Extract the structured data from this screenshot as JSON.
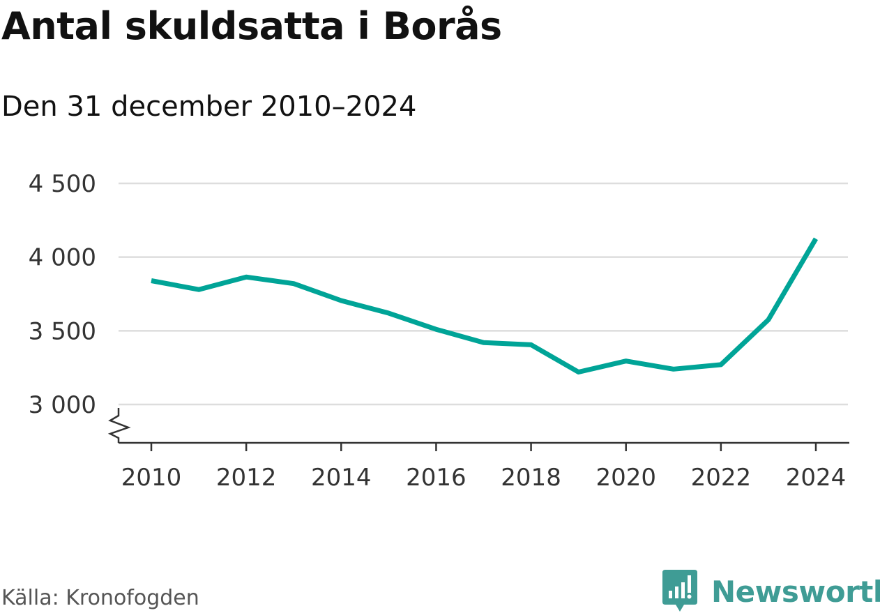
{
  "title": "Antal skuldsatta i Borås",
  "subtitle": "Den 31 december 2010–2024",
  "source": "Källa: Kronofogden",
  "brand": {
    "name": "Newsworthy",
    "logo_icon": "newsworthy-logo-icon",
    "color": "#3f9c95"
  },
  "chart_data": {
    "type": "line",
    "title": "Antal skuldsatta i Borås",
    "subtitle": "Den 31 december 2010–2024",
    "xlabel": "",
    "ylabel": "",
    "x": [
      2010,
      2011,
      2012,
      2013,
      2014,
      2015,
      2016,
      2017,
      2018,
      2019,
      2020,
      2021,
      2022,
      2023,
      2024
    ],
    "series": [
      {
        "values": [
          3840,
          3780,
          3865,
          3820,
          3705,
          3620,
          3510,
          3420,
          3405,
          3220,
          3295,
          3240,
          3270,
          3575,
          4125
        ],
        "color": "#00a497"
      }
    ],
    "x_ticks": [
      "2010",
      "2012",
      "2014",
      "2016",
      "2018",
      "2020",
      "2022",
      "2024"
    ],
    "y_ticks": [
      "3 000",
      "3 500",
      "4 000",
      "4 500"
    ],
    "y_tick_values": [
      3000,
      3500,
      4000,
      4500
    ],
    "x_tick_values": [
      2010,
      2012,
      2014,
      2016,
      2018,
      2020,
      2022,
      2024
    ],
    "xlim": [
      2010,
      2024
    ],
    "ylim": [
      3000,
      4500
    ],
    "axis_break": true,
    "grid": true,
    "legend": "none",
    "gridline_color": "#dddddd",
    "axis_color": "#333333"
  }
}
